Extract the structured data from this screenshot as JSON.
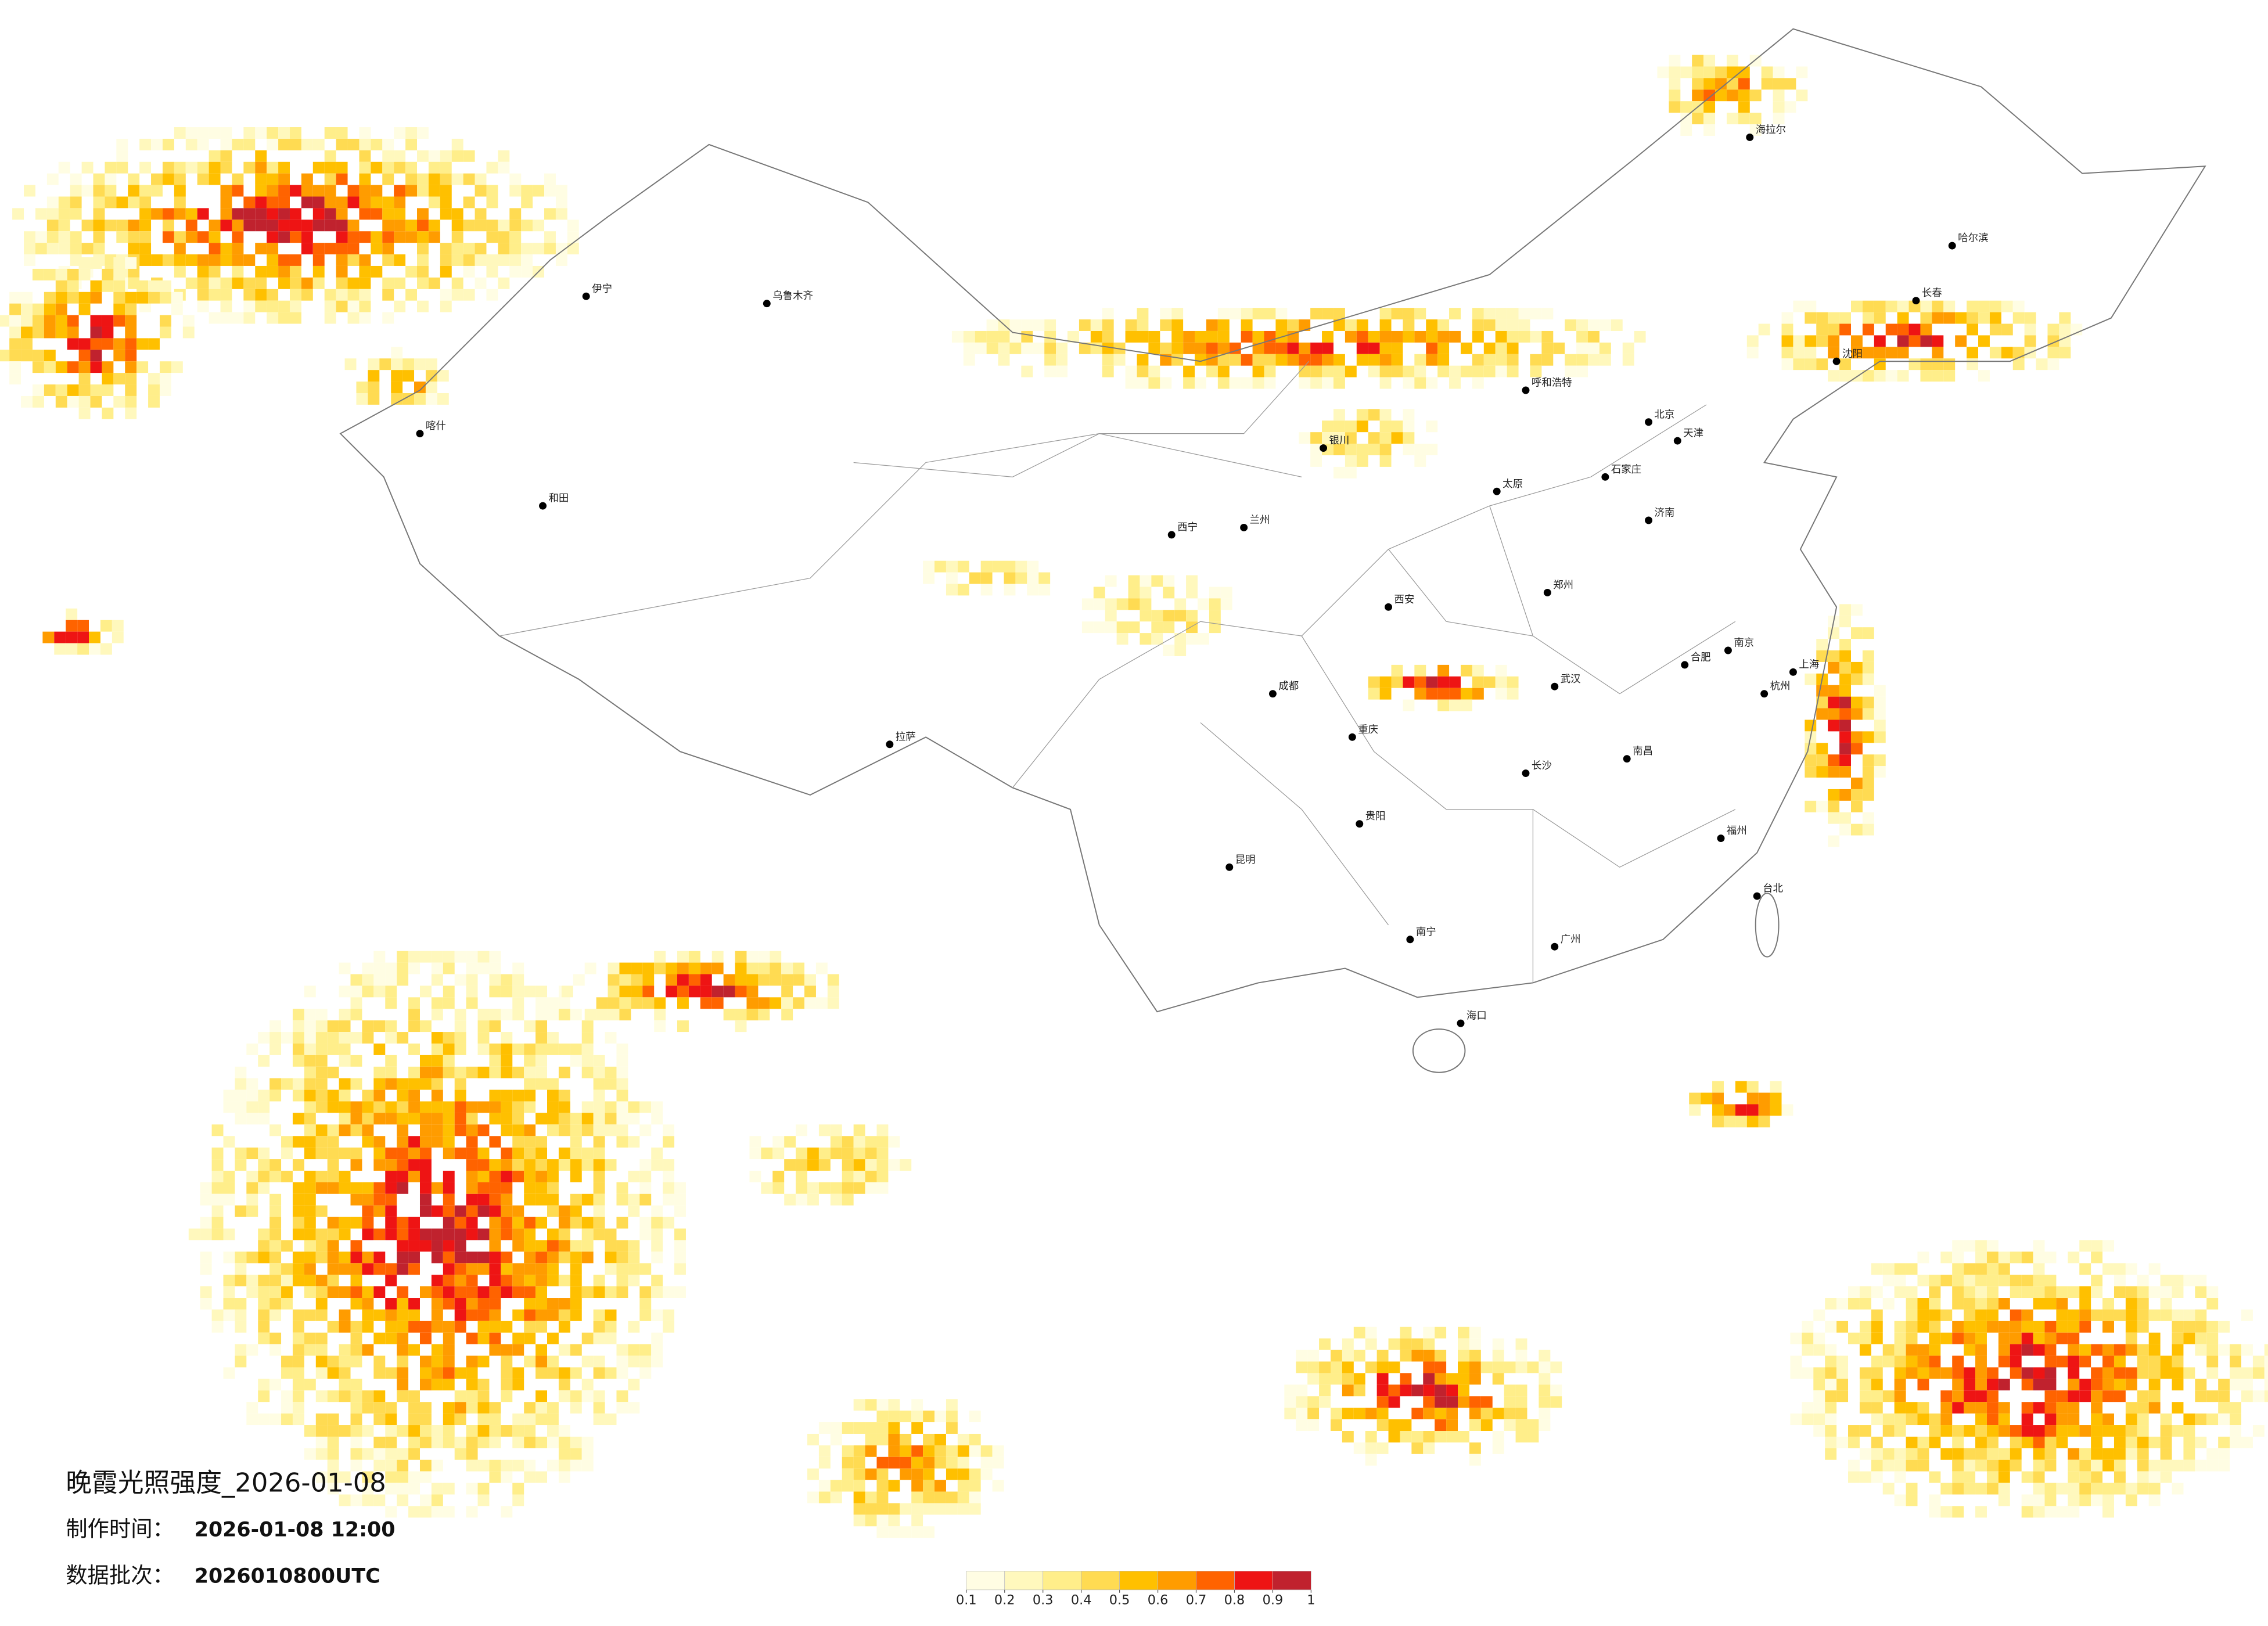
{
  "header": {
    "title": "晚霞光照强度_2026-01-08",
    "made_label": "制作时间：",
    "made_value": "2026-01-08 12:00",
    "batch_label": "数据批次：",
    "batch_value": "2026010800UTC"
  },
  "legend": {
    "ticks": [
      0.1,
      0.2,
      0.3,
      0.4,
      0.5,
      0.6,
      0.7,
      0.8,
      0.9,
      1
    ],
    "colors": [
      "#fffde3",
      "#fff8bd",
      "#ffee8a",
      "#ffdb52",
      "#ffc000",
      "#ff9c00",
      "#ff6300",
      "#ee1414",
      "#c0222e"
    ]
  },
  "cities": [
    "北京",
    "天津",
    "上海",
    "重庆",
    "成都",
    "西安",
    "武汉",
    "广州",
    "南京",
    "杭州",
    "长沙",
    "郑州",
    "济南",
    "沈阳",
    "长春",
    "哈尔滨",
    "呼和浩特",
    "兰州",
    "西宁",
    "拉萨",
    "乌鲁木齐",
    "昆明",
    "贵阳",
    "南宁",
    "福州",
    "南昌",
    "合肥",
    "太原",
    "石家庄",
    "银川",
    "海口",
    "台北",
    "喀什",
    "和田",
    "伊宁",
    "海拉尔"
  ]
}
